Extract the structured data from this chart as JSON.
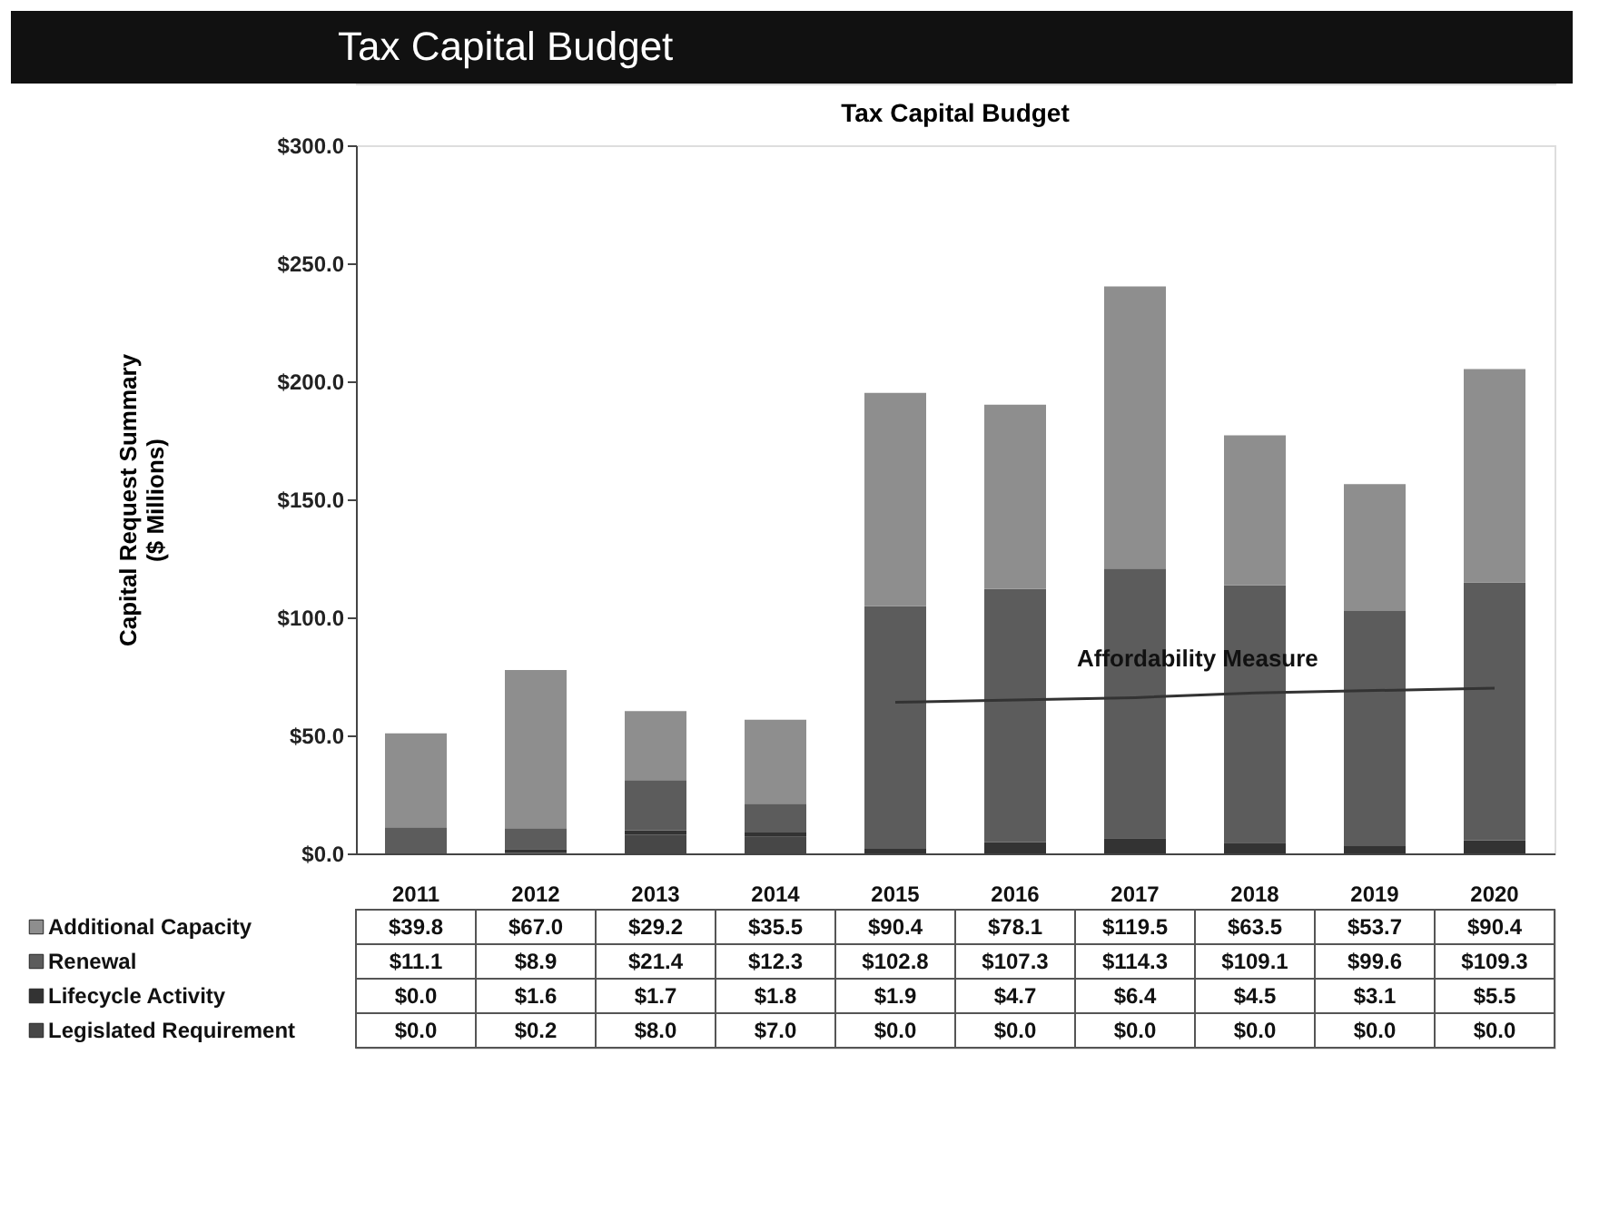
{
  "chart_data": {
    "type": "bar",
    "title": "Tax Capital Budget",
    "subtitle": "Tax Capital Budget",
    "ylabel": "Capital Request Summary\n($ Millions)",
    "categories": [
      "2011",
      "2012",
      "2013",
      "2014",
      "2015",
      "2016",
      "2017",
      "2018",
      "2019",
      "2020"
    ],
    "stacked": true,
    "series": [
      {
        "name": "Legislated Requirement",
        "color": "#474747",
        "values": [
          0.0,
          0.2,
          8.0,
          7.0,
          0.0,
          0.0,
          0.0,
          0.0,
          0.0,
          0.0
        ],
        "value_labels": [
          "$0.0",
          "$0.2",
          "$8.0",
          "$7.0",
          "$0.0",
          "$0.0",
          "$0.0",
          "$0.0",
          "$0.0",
          "$0.0"
        ]
      },
      {
        "name": "Lifecycle Activity",
        "color": "#333333",
        "values": [
          0.0,
          1.6,
          1.7,
          1.8,
          1.9,
          4.7,
          6.4,
          4.5,
          3.1,
          5.5
        ],
        "value_labels": [
          "$0.0",
          "$1.6",
          "$1.7",
          "$1.8",
          "$1.9",
          "$4.7",
          "$6.4",
          "$4.5",
          "$3.1",
          "$5.5"
        ]
      },
      {
        "name": "Renewal",
        "color": "#5c5c5c",
        "values": [
          11.1,
          8.9,
          21.4,
          12.3,
          102.8,
          107.3,
          114.3,
          109.1,
          99.6,
          109.3
        ],
        "value_labels": [
          "$11.1",
          "$8.9",
          "$21.4",
          "$12.3",
          "$102.8",
          "$107.3",
          "$114.3",
          "$109.1",
          "$99.6",
          "$109.3"
        ]
      },
      {
        "name": "Additional Capacity",
        "color": "#8e8e8e",
        "values": [
          39.8,
          67.0,
          29.2,
          35.5,
          90.4,
          78.1,
          119.5,
          63.5,
          53.7,
          90.4
        ],
        "value_labels": [
          "$39.8",
          "$67.0",
          "$29.2",
          "$35.5",
          "$90.4",
          "$78.1",
          "$119.5",
          "$63.5",
          "$53.7",
          "$90.4"
        ]
      },
      {
        "name": "Affordability Measure",
        "type": "line",
        "color": "#333333",
        "values": [
          null,
          null,
          null,
          null,
          64,
          65,
          66,
          68,
          69,
          70
        ]
      }
    ],
    "ylim": [
      0,
      300
    ],
    "yticks": [
      {
        "value": 0,
        "label": "$0.0"
      },
      {
        "value": 50,
        "label": "$50.0"
      },
      {
        "value": 100,
        "label": "$100.0"
      },
      {
        "value": 150,
        "label": "$150.0"
      },
      {
        "value": 200,
        "label": "$200.0"
      },
      {
        "value": 250,
        "label": "$250.0"
      },
      {
        "value": 300,
        "label": "$300.0"
      }
    ],
    "legend": "bottom",
    "grid": false
  }
}
